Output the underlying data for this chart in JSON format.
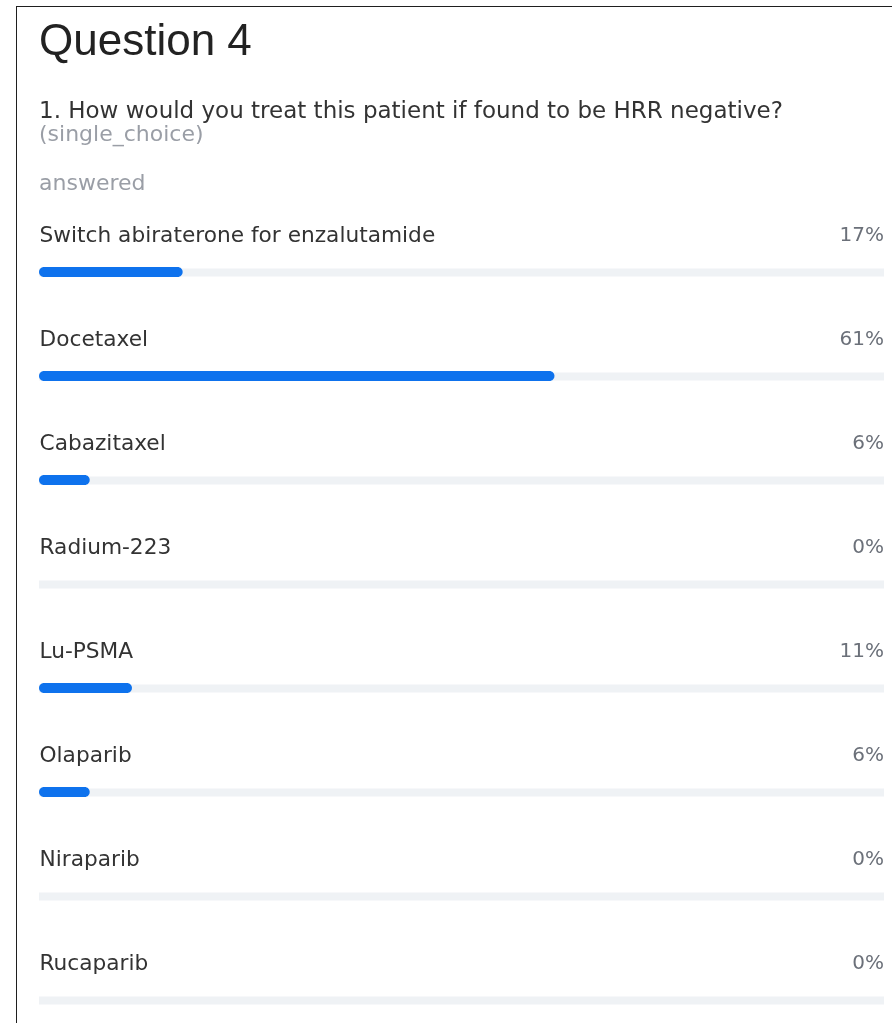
{
  "chart_data": {
    "type": "bar",
    "orientation": "horizontal",
    "title": "Question 4",
    "subtitle": "1. How would you treat this patient if found to be HRR negative?",
    "annotations": [
      "(single_choice)",
      "answered"
    ],
    "categories": [
      "Switch abiraterone for enzalutamide",
      "Docetaxel",
      "Cabazitaxel",
      "Radium-223",
      "Lu-PSMA",
      "Olaparib",
      "Niraparib",
      "Rucaparib"
    ],
    "values": [
      17,
      61,
      6,
      0,
      11,
      6,
      0,
      0
    ],
    "value_labels": [
      "17%",
      "61%",
      "6%",
      "0%",
      "11%",
      "6%",
      "0%",
      "0%"
    ],
    "color": "#0e72ed",
    "xlim": [
      0,
      100
    ],
    "grid": "y",
    "tick_labels": "y"
  }
}
